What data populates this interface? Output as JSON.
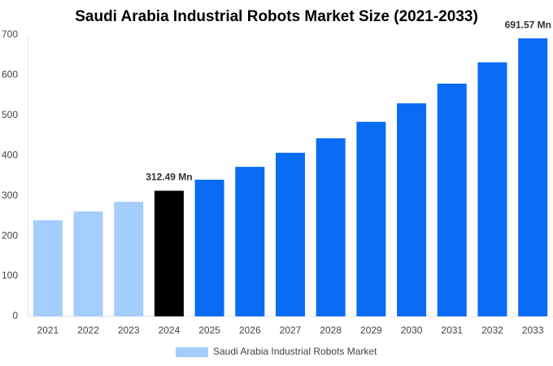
{
  "chart_data": {
    "type": "bar",
    "title": "Saudi Arabia Industrial Robots Market Size (2021-2033)",
    "categories": [
      "2021",
      "2022",
      "2023",
      "2024",
      "2025",
      "2026",
      "2027",
      "2028",
      "2029",
      "2030",
      "2031",
      "2032",
      "2033"
    ],
    "series": [
      {
        "name": "Saudi Arabia Industrial Robots Market",
        "color": "#a3cdfc",
        "values": [
          239,
          261,
          285,
          312.49,
          340,
          372,
          407,
          443,
          484,
          530,
          579,
          632,
          691.57
        ],
        "value_labels": [
          null,
          null,
          null,
          "312.49 Mn",
          null,
          null,
          null,
          null,
          null,
          null,
          null,
          null,
          "691.57 Mn"
        ],
        "colors": [
          "#a3cdfc",
          "#a3cdfc",
          "#a3cdfc",
          "#000000",
          "#0a6cf5",
          "#0a6cf5",
          "#0a6cf5",
          "#0a6cf5",
          "#0a6cf5",
          "#0a6cf5",
          "#0a6cf5",
          "#0a6cf5",
          "#0a6cf5"
        ]
      }
    ],
    "ylim": [
      0,
      700
    ],
    "yticks": [
      0,
      100,
      200,
      300,
      400,
      500,
      600,
      700
    ],
    "grid": false,
    "legend": "bottom"
  }
}
